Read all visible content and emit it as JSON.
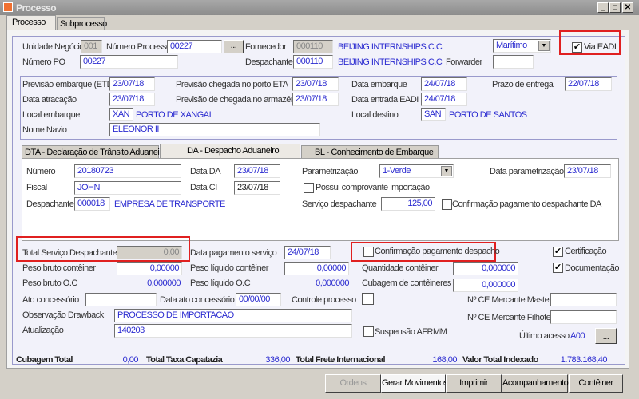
{
  "window": {
    "title": "Processo",
    "min": "_",
    "max": "□",
    "close": "✕"
  },
  "tabs": [
    {
      "label": "Processo",
      "active": true
    },
    {
      "label": "Subprocesso",
      "active": false
    }
  ],
  "header": {
    "unidade_label": "Unidade Negócio",
    "unidade_value": "001",
    "numero_processo_label": "Número Processo",
    "numero_processo_value": "00227",
    "lookup_label": "...",
    "fornecedor_label": "Fornecedor",
    "fornecedor_code": "000110",
    "fornecedor_name": "BEIJING INTERNSHIPS C.C",
    "modal_value": "Marítimo",
    "via_eadi_label": "Via EADI",
    "via_eadi_checked": true,
    "numero_po_label": "Número PO",
    "numero_po_value": "00227",
    "despachante_label": "Despachante",
    "despachante_code": "000110",
    "despachante_name": "BEIJING INTERNSHIPS C.C",
    "forwarder_label": "Forwarder",
    "forwarder_value": ""
  },
  "dates": {
    "etd_label": "Previsão embarque (ETD)",
    "etd": "23/07/18",
    "eta_label": "Previsão chegada no porto ETA",
    "eta": "23/07/18",
    "data_embarque_label": "Data embarque",
    "data_embarque": "24/07/18",
    "prazo_label": "Prazo de entrega",
    "prazo": "22/07/18",
    "atracacao_label": "Data atracação",
    "atracacao": "23/07/18",
    "armazem_label": "Previsão de chegada no armazém",
    "armazem": "23/07/18",
    "entrada_eadi_label": "Data entrada EADI",
    "entrada_eadi": "24/07/18",
    "local_embarque_label": "Local embarque",
    "local_embarque_code": "XAN",
    "local_embarque_name": "PORTO DE XANGAI",
    "local_destino_label": "Local destino",
    "local_destino_code": "SAN",
    "local_destino_name": "PORTO DE SANTOS",
    "navio_label": "Nome Navio",
    "navio": "ELEONOR II"
  },
  "inner_tabs": [
    {
      "label": "DTA - Declaração de Trânsito Aduaneiro"
    },
    {
      "label": "DA - Despacho Aduaneiro",
      "active": true
    },
    {
      "label": "BL - Conhecimento de Embarque"
    }
  ],
  "da": {
    "numero_label": "Número",
    "numero": "20180723",
    "data_da_label": "Data DA",
    "data_da": "23/07/18",
    "param_label": "Parametrização",
    "param": "1-Verde",
    "data_param_label": "Data parametrização",
    "data_param": "23/07/18",
    "fiscal_label": "Fiscal",
    "fiscal": "JOHN",
    "data_ci_label": "Data CI",
    "data_ci": "23/07/18",
    "possui_label": "Possui comprovante importação",
    "possui_checked": false,
    "despachante_label": "Despachante",
    "despachante_code": "000018",
    "despachante_name": "EMPRESA DE TRANSPORTE",
    "servico_label": "Serviço despachante",
    "servico": "125,00",
    "conf_da_label": "Confirmação pagamento despachante DA",
    "conf_da_checked": false
  },
  "details": {
    "total_servico_label": "Total Serviço Despachante",
    "total_servico": "0,00",
    "data_pag_label": "Data pagamento serviço",
    "data_pag": "24/07/18",
    "conf_pag_label": "Confirmação pagamento despacho",
    "conf_pag_checked": false,
    "certificacao_label": "Certificação",
    "certificacao_checked": true,
    "peso_bruto_cont_label": "Peso bruto contêiner",
    "peso_bruto_cont": "0,00000",
    "peso_liq_cont_label": "Peso líquido contêiner",
    "peso_liq_cont": "0,00000",
    "qtd_cont_label": "Quantidade contêiner",
    "qtd_cont": "0,000000",
    "documentacao_label": "Documentação",
    "documentacao_checked": true,
    "peso_bruto_oc_label": "Peso bruto O.C",
    "peso_bruto_oc": "0,000000",
    "peso_liq_oc_label": "Peso líquido O.C",
    "peso_liq_oc": "0,000000",
    "cubagem_cont_label": "Cubagem de contêineres",
    "cubagem_cont": "0,000000",
    "ato_label": "Ato concessório",
    "ato": "",
    "data_ato_label": "Data ato concessório",
    "data_ato": "00/00/00",
    "controle_label": "Controle processo",
    "ce_master_label": "Nº CE Mercante Master",
    "ce_master": "",
    "obs_label": "Observação Drawback",
    "obs": "PROCESSO DE IMPORTACAO",
    "ce_filhote_label": "Nº CE Mercante Filhote",
    "ce_filhote": "",
    "atualizacao_label": "Atualização",
    "atualizacao": "140203",
    "afrmm_label": "Suspensão AFRMM",
    "afrmm_checked": false,
    "ultimo_acesso_label": "Último acesso",
    "ultimo_acesso": "A00",
    "more_label": "..."
  },
  "totals": {
    "cubagem_label": "Cubagem Total",
    "cubagem": "0,00",
    "capatazia_label": "Total Taxa Capatazia",
    "capatazia": "336,00",
    "frete_label": "Total Frete Internacional",
    "frete": "168,00",
    "indexado_label": "Valor Total Indexado",
    "indexado": "1.783.168,40"
  },
  "buttons": {
    "ordens": "Ordens",
    "gerar": "Gerar Movimentos",
    "imprimir": "Imprimir",
    "acompanhamento": "Acompanhamento",
    "conteiner": "Contêiner"
  },
  "colors": {
    "value_text": "#2b2bd0",
    "highlight": "#e02020"
  }
}
